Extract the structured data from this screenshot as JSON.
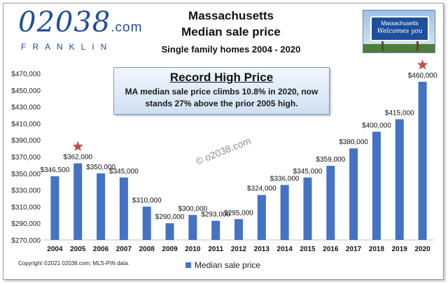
{
  "logo": {
    "main": "02038",
    "dotcom": ".com",
    "sub": "FRANKLIN"
  },
  "sign": {
    "line1": "Massachusetts",
    "line2": "Welcomes you"
  },
  "callout": {
    "title": "Record High Price",
    "body": "MA median sale price climbs 10.8% in 2020, now stands 27% above the prior 2005 high."
  },
  "watermark": "© o2038.com",
  "copyright": "Copyright ©2021 02038.com; MLS-PIN data.",
  "colors": {
    "bar": "#4472c4",
    "star": "#c0504d",
    "logo": "#1f4e99"
  },
  "chart_data": {
    "type": "bar",
    "title": "Massachusetts",
    "subtitle": "Median sale price",
    "subtitle2": "Single family homes 2004 - 2020",
    "categories": [
      "2004",
      "2005",
      "2006",
      "2007",
      "2008",
      "2009",
      "2010",
      "2011",
      "2012",
      "2013",
      "2014",
      "2015",
      "2016",
      "2017",
      "2018",
      "2019",
      "2020"
    ],
    "series": [
      {
        "name": "Median sale price",
        "values": [
          346500,
          362000,
          350000,
          345000,
          310000,
          290000,
          300000,
          293000,
          295000,
          324000,
          336000,
          345000,
          359000,
          380000,
          400000,
          415000,
          460000
        ]
      }
    ],
    "data_labels": [
      "$346,500",
      "$362,000",
      "$350,000",
      "$345,000",
      "$310,000",
      "$290,000",
      "$300,000",
      "$293,000",
      "$295,000",
      "$324,000",
      "$336,000",
      "$345,000",
      "$359,000",
      "$380,000",
      "$400,000",
      "$415,000",
      "$460,000"
    ],
    "ylim": [
      270000,
      470000
    ],
    "yticks": [
      270000,
      290000,
      310000,
      330000,
      350000,
      370000,
      390000,
      410000,
      430000,
      450000,
      470000
    ],
    "ytick_labels": [
      "$270,000",
      "$290,000",
      "$310,000",
      "$330,000",
      "$350,000",
      "$370,000",
      "$390,000",
      "$410,000",
      "$430,000",
      "$450,000",
      "$470,000"
    ],
    "highlighted": [
      "2005",
      "2020"
    ],
    "grid": false,
    "legend": "bottom"
  }
}
